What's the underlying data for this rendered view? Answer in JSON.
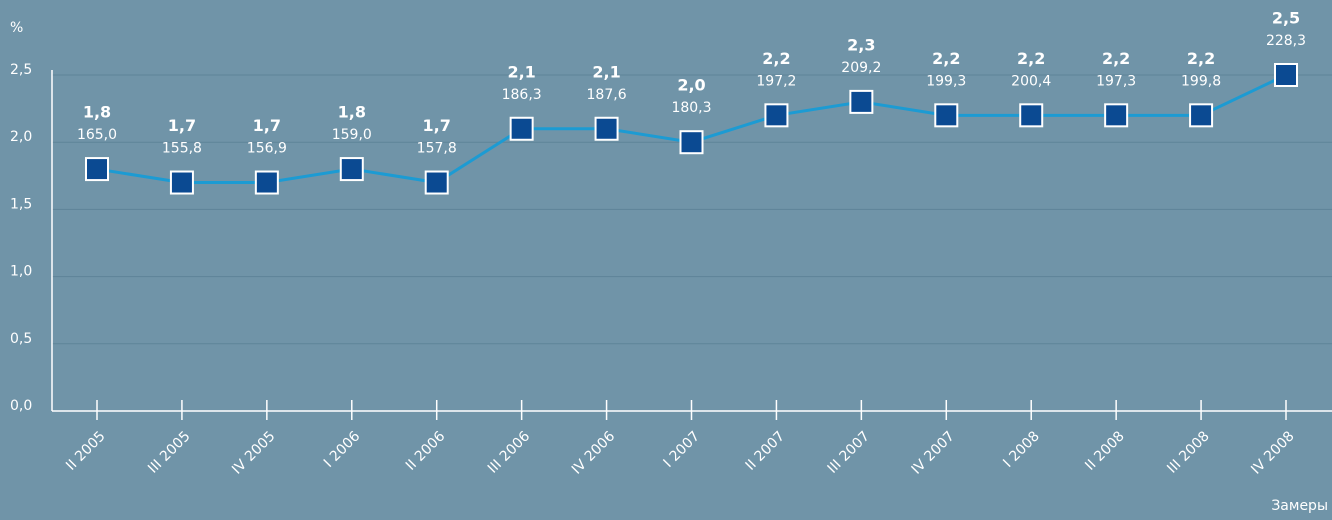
{
  "chart_data": {
    "type": "line",
    "y_label": "%",
    "x_label": "Замеры",
    "categories": [
      "II 2005",
      "III 2005",
      "IV 2005",
      "I 2006",
      "II 2006",
      "III 2006",
      "IV 2006",
      "I 2007",
      "II 2007",
      "III 2007",
      "IV 2007",
      "I 2008",
      "II 2008",
      "III 2008",
      "IV 2008"
    ],
    "series": [
      {
        "color": "#1c9bd3",
        "marker_color": "#0b4a92",
        "values": [
          1.8,
          1.7,
          1.7,
          1.8,
          1.7,
          2.1,
          2.1,
          2.0,
          2.2,
          2.3,
          2.2,
          2.2,
          2.2,
          2.2,
          2.5
        ],
        "value_labels": [
          "1,8",
          "1,7",
          "1,7",
          "1,8",
          "1,7",
          "2,1",
          "2,1",
          "2,0",
          "2,2",
          "2,3",
          "2,2",
          "2,2",
          "2,2",
          "2,2",
          "2,5"
        ],
        "annotations": [
          "165,0",
          "155,8",
          "156,9",
          "159,0",
          "157,8",
          "186,3",
          "187,6",
          "180,3",
          "197,2",
          "209,2",
          "199,3",
          "200,4",
          "197,3",
          "199,8",
          "228,3"
        ]
      }
    ],
    "ylim": [
      0,
      2.5
    ],
    "yticks": [
      {
        "value": 0,
        "label": "0,0"
      },
      {
        "value": 0.5,
        "label": "0,5"
      },
      {
        "value": 1,
        "label": "1,0"
      },
      {
        "value": 1.5,
        "label": "1,5"
      },
      {
        "value": 2,
        "label": "2,0"
      },
      {
        "value": 2.5,
        "label": "2,5"
      }
    ],
    "grid": true
  }
}
